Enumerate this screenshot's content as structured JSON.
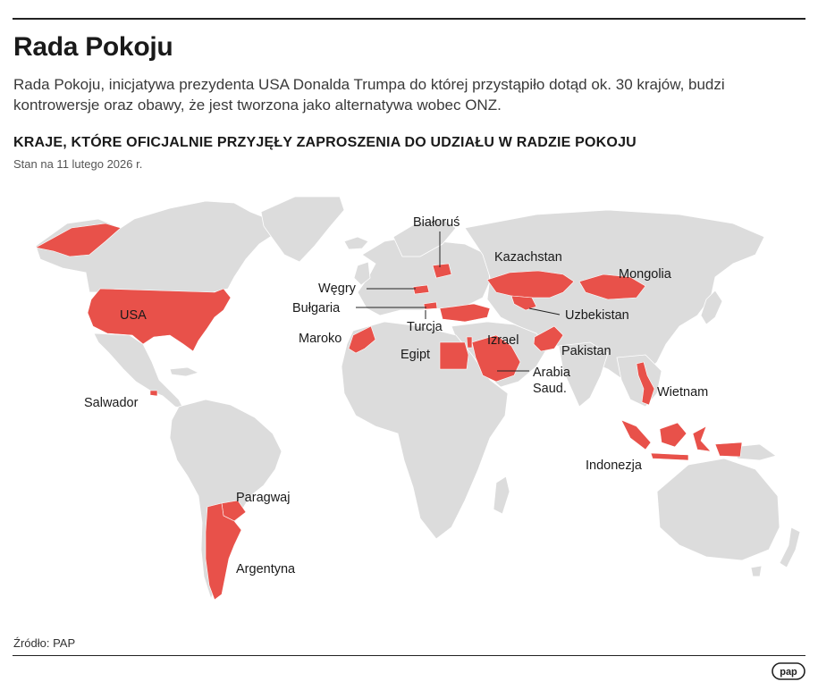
{
  "header": {
    "title": "Rada Pokoju",
    "lead": "Rada Pokoju, inicjatywa prezydenta USA Donalda Trumpa do której przystąpiło dotąd ok. 30 krajów, budzi kontrowersje oraz obawy, że jest tworzona jako alternatywa wobec ONZ.",
    "subtitle": "KRAJE, KTÓRE OFICJALNIE PRZYJĘŁY ZAPROSZENIA DO UDZIAŁU W RADZIE POKOJU",
    "date": "Stan na 11 lutego 2026 r."
  },
  "map": {
    "highlight_color": "#e8514a",
    "land_color": "#dcdcdc",
    "labels": {
      "usa": "USA",
      "salwador": "Salwador",
      "paragwaj": "Paragwaj",
      "argentyna": "Argentyna",
      "bialorus": "Białoruś",
      "wegry": "Węgry",
      "bulgaria": "Bułgaria",
      "turcja": "Turcja",
      "maroko": "Maroko",
      "egipt": "Egipt",
      "izrael": "Izrael",
      "arabia_1": "Arabia",
      "arabia_2": "Saud.",
      "kazachstan": "Kazachstan",
      "uzbekistan": "Uzbekistan",
      "mongolia": "Mongolia",
      "pakistan": "Pakistan",
      "wietnam": "Wietnam",
      "indonezja": "Indonezja"
    }
  },
  "footer": {
    "source": "Źródło: PAP",
    "logo_text": "pap"
  }
}
